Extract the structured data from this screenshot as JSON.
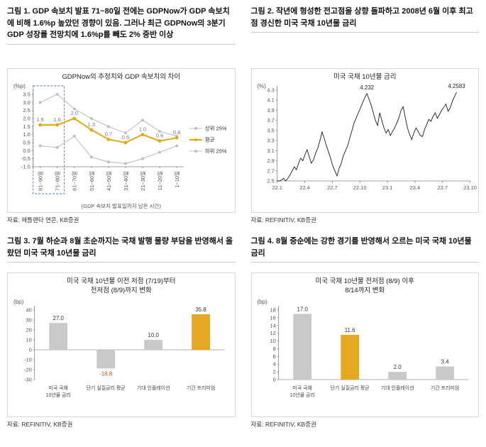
{
  "figures": [
    {
      "title": "그림 1. GDP 속보치 발표 71~80일 전에는 GDPNow가 GDP 속보치에 비해 1.6%p 높았던 경향이 있음. 그러나 최근 GDPNow의 3분기 GDP 성장률 전망치에 1.6%p를 빼도 2% 중반 이상",
      "chart_title": "GDPNow의 추정치와 GDP 속보치의 차이",
      "unit": "(%p)",
      "xlabel": "(GDP 속보치 발표일까지 남은 시간)",
      "source": "자료: 애틀랜타 연은, KB증권"
    },
    {
      "title": "그림 2. 작년에 형성한 전고점을 상향 돌파하고 2008년 6월 이후 최고점 경신한 미국 국채 10년물 금리",
      "chart_title": "미국 국채 10년물 금리",
      "unit": "(%)",
      "source": "자료: REFINITIV, KB증권"
    },
    {
      "title": "그림 3. 7월 하순과 8월 초순까지는 국채 발행 물량 부담을 반영해서 올랐던 미국 국채 10년물 금리",
      "chart_title": "미국 국채 10년물 이전 저점 (7/19)부터\n전저점 (8/9)까지 변화",
      "unit": "(bp)",
      "source": "자료: REFINITIV, KB증권"
    },
    {
      "title": "그림 4. 8월 중순에는 강한 경기를 반영해서 오르는 미국 국채 10년물 금리",
      "chart_title": "미국 국채 10년물 전저점 (8/9) 이후\n8/14까지 변화",
      "unit": "(bp)",
      "source": "자료: REFINITIV, KB증권"
    }
  ],
  "chart_data": [
    {
      "type": "line",
      "title": "GDPNow의 추정치와 GDP 속보치의 차이",
      "ylabel": "(%p)",
      "xlabel": "(GDP 속보치 발표일까지 남은 시간)",
      "ylim": [
        -1.0,
        3.5
      ],
      "ytick_step": 0.5,
      "categories": [
        "81~90일",
        "71~80일",
        "61~70일",
        "51~60일",
        "41~50일",
        "31~40일",
        "21~30일",
        "11~20일",
        "1~10일"
      ],
      "highlight_categories": [
        0,
        1
      ],
      "highlight_color": "#4a72b8",
      "series": [
        {
          "name": "상위 25%",
          "color": "#bfbfbf",
          "values": [
            3.0,
            3.5,
            2.6,
            2.0,
            1.5,
            1.1,
            1.9,
            1.2,
            0.9
          ]
        },
        {
          "name": "평균",
          "color": "#e5a80f",
          "emphasis": true,
          "show_labels": true,
          "values": [
            1.6,
            1.6,
            2.0,
            1.3,
            0.7,
            0.5,
            1.0,
            0.6,
            0.8
          ]
        },
        {
          "name": "하위 25%",
          "color": "#bfbfbf",
          "values": [
            0.3,
            0.2,
            0.9,
            -0.4,
            -0.7,
            -0.8,
            -0.5,
            -0.1,
            0.3
          ]
        }
      ],
      "legend_position": "right"
    },
    {
      "type": "line",
      "title": "미국 국채 10년물 금리",
      "ylabel": "(%)",
      "ylim": [
        2.5,
        4.3
      ],
      "ytick_step": 0.2,
      "xticks": [
        "22.1",
        "22.4",
        "22.7",
        "22.10",
        "23.1",
        "23.4",
        "23.7",
        "23.10"
      ],
      "x_data_fraction": 0.93,
      "line_color": "#1a1a1a",
      "values": [
        2.5,
        2.5,
        2.52,
        2.55,
        2.5,
        2.55,
        2.62,
        2.7,
        2.78,
        2.72,
        2.85,
        2.95,
        2.9,
        3.02,
        3.12,
        2.98,
        2.85,
        2.92,
        3.05,
        3.15,
        3.3,
        3.47,
        3.35,
        3.2,
        3.08,
        2.95,
        2.8,
        2.7,
        2.6,
        2.75,
        2.85,
        3.0,
        3.1,
        3.2,
        3.35,
        3.5,
        3.65,
        3.75,
        3.85,
        3.95,
        4.05,
        4.15,
        4.23,
        4.12,
        4.0,
        3.85,
        3.7,
        3.6,
        3.85,
        3.7,
        3.55,
        3.45,
        3.52,
        3.4,
        3.48,
        3.55,
        3.65,
        3.75,
        3.9,
        3.97,
        3.75,
        3.55,
        3.42,
        3.32,
        3.45,
        3.55,
        3.48,
        3.4,
        3.38,
        3.52,
        3.62,
        3.72,
        3.68,
        3.78,
        3.85,
        3.74,
        3.82,
        3.9,
        3.96,
        4.02,
        3.88,
        3.95,
        4.08,
        4.17,
        4.26
      ],
      "annotations": [
        {
          "index": 42,
          "text": "4.232"
        },
        {
          "index": 84,
          "text": "4.2583"
        }
      ]
    },
    {
      "type": "bar",
      "title": "미국 국채 10년물 이전 저점 (7/19)부터 전저점 (8/9)까지 변화",
      "ylabel": "(bp)",
      "ylim": [
        -30,
        40
      ],
      "ytick_step": 10,
      "categories": [
        "미국 국채\n10년물 금리",
        "단기 실질금리 평균",
        "기대 인플레이션",
        "기간 프리미엄"
      ],
      "values": [
        27.0,
        -18.8,
        10.0,
        35.8
      ],
      "colors": [
        "#c9c9c9",
        "#c9c9c9",
        "#c9c9c9",
        "#e5a823"
      ],
      "negative_label_color": "#d2541e"
    },
    {
      "type": "bar",
      "title": "미국 국채 10년물 전저점 (8/9) 이후 8/14까지 변화",
      "ylabel": "(bp)",
      "ylim": [
        0,
        18
      ],
      "ytick_step": 2,
      "categories": [
        "미국 국채\n10년물 금리",
        "단기 실질금리 평균",
        "기대 인플레이션",
        "기간 프리미엄"
      ],
      "values": [
        17.0,
        11.6,
        2.0,
        3.4
      ],
      "colors": [
        "#c9c9c9",
        "#e5a823",
        "#c9c9c9",
        "#c9c9c9"
      ],
      "negative_label_color": "#d2541e"
    }
  ]
}
